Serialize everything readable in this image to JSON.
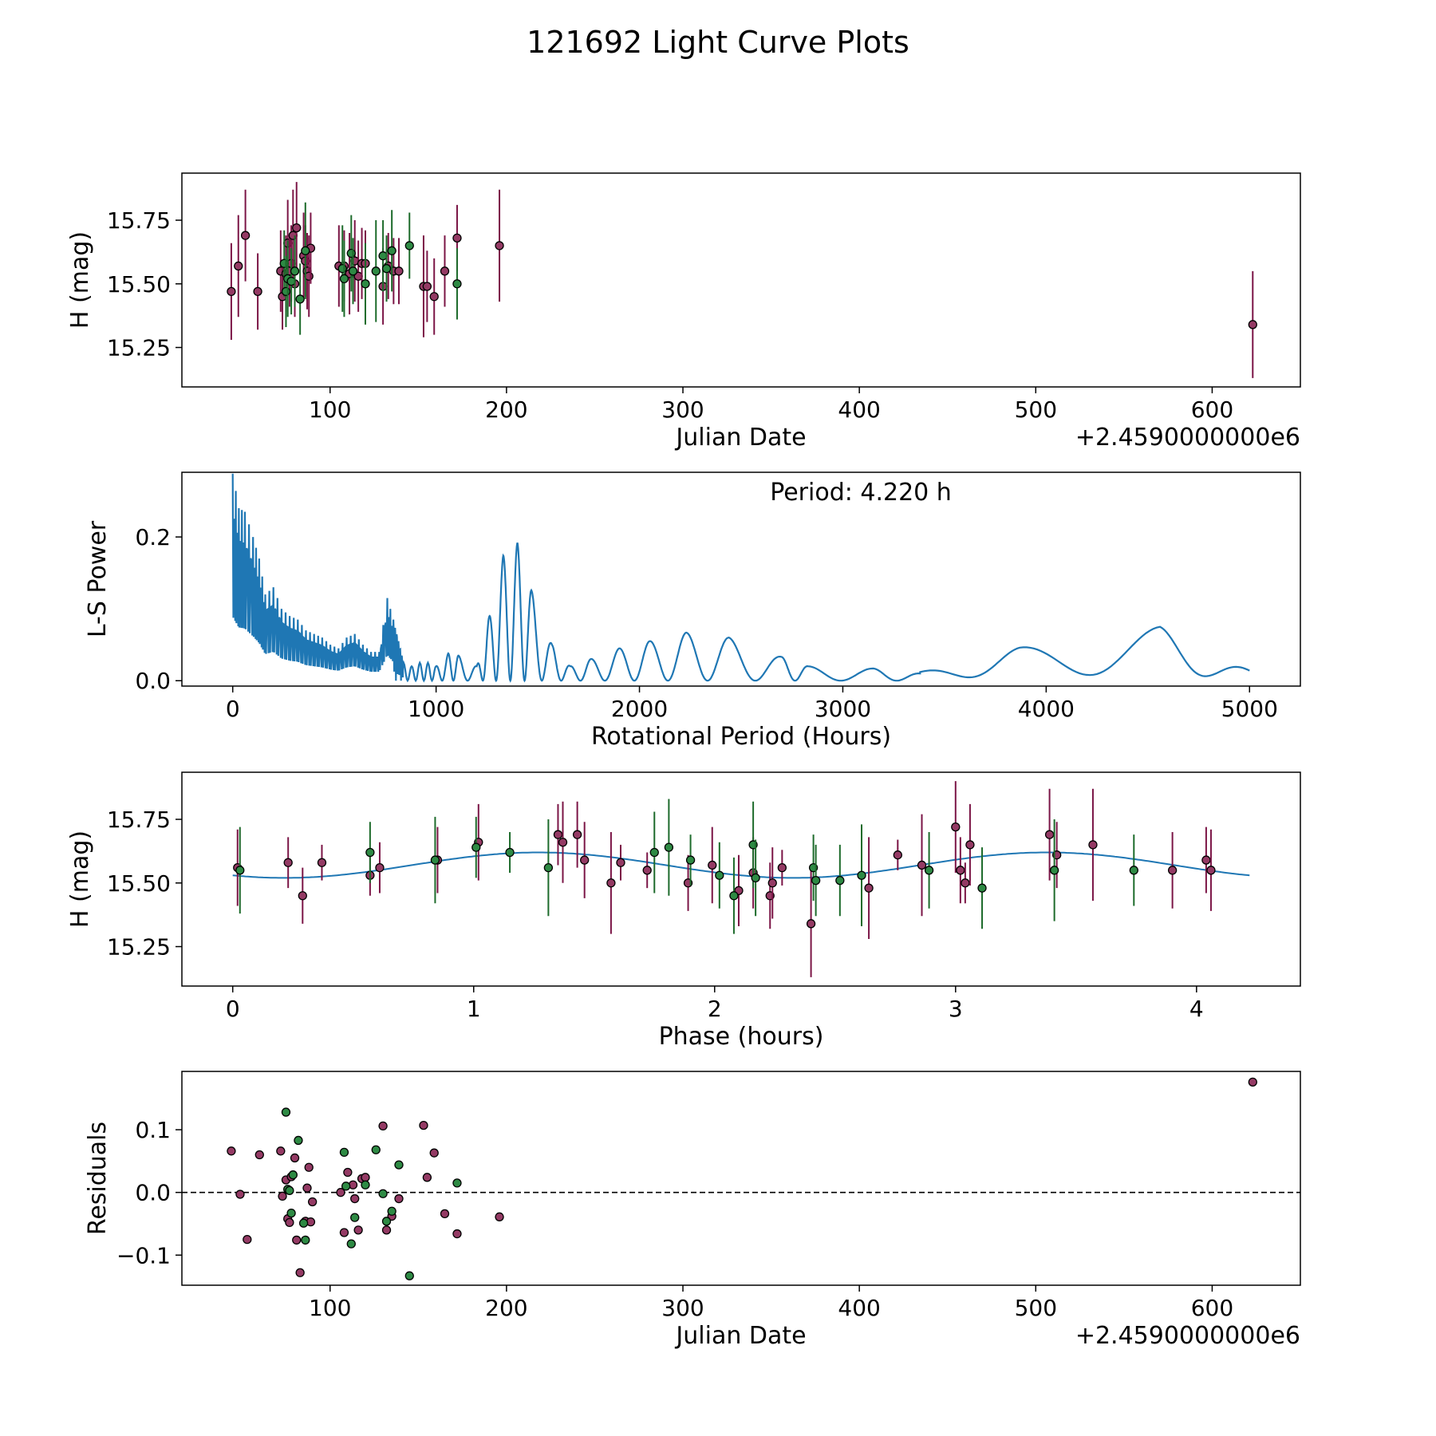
{
  "suptitle": "121692 Light Curve Plots",
  "colors": {
    "maroon": "#7b1546",
    "maroon_fill": "#943a64",
    "green": "#1d6b2b",
    "green_fill": "#2e8a44",
    "line": "#1f77b4",
    "marker_edge": "#000000",
    "frame": "#000000"
  },
  "chart_data": [
    {
      "type": "scatter",
      "name": "photometry",
      "xlabel": "Julian Date",
      "ylabel": "H (mag)",
      "offset_text": "+2.4590000000e6",
      "xlim": [
        16,
        650
      ],
      "ylim": [
        15.095,
        15.935
      ],
      "xticks": [
        100,
        200,
        300,
        400,
        500,
        600
      ],
      "yticks": [
        15.25,
        15.5,
        15.75
      ],
      "ytick_labels": [
        "15.25",
        "15.50",
        "15.75"
      ],
      "series": [
        {
          "color": "maroon",
          "points": [
            [
              44,
              15.47,
              0.19
            ],
            [
              48,
              15.57,
              0.2
            ],
            [
              52,
              15.69,
              0.18
            ],
            [
              59,
              15.47,
              0.15
            ],
            [
              72,
              15.55,
              0.16
            ],
            [
              73,
              15.45,
              0.13
            ],
            [
              75,
              15.54,
              0.15
            ],
            [
              76,
              15.66,
              0.17
            ],
            [
              77,
              15.55,
              0.14
            ],
            [
              78,
              15.58,
              0.15
            ],
            [
              79,
              15.69,
              0.18
            ],
            [
              80,
              15.5,
              0.13
            ],
            [
              81,
              15.72,
              0.18
            ],
            [
              85,
              15.61,
              0.17
            ],
            [
              86,
              15.59,
              0.14
            ],
            [
              87,
              15.55,
              0.15
            ],
            [
              88,
              15.53,
              0.16
            ],
            [
              89,
              15.64,
              0.14
            ],
            [
              105,
              15.57,
              0.16
            ],
            [
              108,
              15.57,
              0.14
            ],
            [
              111,
              15.54,
              0.16
            ],
            [
              114,
              15.59,
              0.16
            ],
            [
              116,
              15.53,
              0.14
            ],
            [
              118,
              15.58,
              0.14
            ],
            [
              120,
              15.58,
              0.13
            ],
            [
              130,
              15.49,
              0.15
            ],
            [
              133,
              15.57,
              0.13
            ],
            [
              136,
              15.55,
              0.13
            ],
            [
              139,
              15.55,
              0.13
            ],
            [
              153,
              15.49,
              0.2
            ],
            [
              155,
              15.49,
              0.14
            ],
            [
              159,
              15.45,
              0.15
            ],
            [
              165,
              15.55,
              0.14
            ],
            [
              172,
              15.68,
              0.13
            ],
            [
              196,
              15.65,
              0.22
            ],
            [
              623,
              15.34,
              0.21
            ]
          ]
        },
        {
          "color": "green",
          "points": [
            [
              74,
              15.58,
              0.13
            ],
            [
              75,
              15.47,
              0.14
            ],
            [
              76,
              15.52,
              0.15
            ],
            [
              78,
              15.51,
              0.13
            ],
            [
              80,
              15.55,
              0.14
            ],
            [
              83,
              15.44,
              0.14
            ],
            [
              86,
              15.63,
              0.19
            ],
            [
              107,
              15.56,
              0.17
            ],
            [
              108,
              15.52,
              0.15
            ],
            [
              112,
              15.62,
              0.15
            ],
            [
              113,
              15.55,
              0.13
            ],
            [
              120,
              15.5,
              0.16
            ],
            [
              126,
              15.55,
              0.2
            ],
            [
              130,
              15.61,
              0.14
            ],
            [
              132,
              15.56,
              0.13
            ],
            [
              135,
              15.63,
              0.16
            ],
            [
              145,
              15.65,
              0.13
            ],
            [
              172,
              15.5,
              0.14
            ]
          ]
        }
      ]
    },
    {
      "type": "line",
      "name": "periodogram",
      "xlabel": "Rotational Period (Hours)",
      "ylabel": "L-S Power",
      "xlim": [
        -250,
        5250
      ],
      "ylim": [
        -0.0075,
        0.29
      ],
      "xticks": [
        0,
        1000,
        2000,
        3000,
        4000,
        5000
      ],
      "yticks": [
        0.0,
        0.2
      ],
      "ytick_labels": [
        "0.0",
        "0.2"
      ],
      "annotation": "Period: 4.220 h",
      "peaks": [
        [
          0,
          0.288
        ],
        [
          30,
          0.24
        ],
        [
          60,
          0.235
        ],
        [
          100,
          0.2
        ],
        [
          130,
          0.17
        ],
        [
          160,
          0.12
        ],
        [
          200,
          0.13
        ],
        [
          240,
          0.1
        ],
        [
          280,
          0.09
        ],
        [
          320,
          0.085
        ],
        [
          360,
          0.07
        ],
        [
          400,
          0.065
        ],
        [
          440,
          0.06
        ],
        [
          480,
          0.05
        ],
        [
          520,
          0.045
        ],
        [
          560,
          0.06
        ],
        [
          600,
          0.065
        ],
        [
          640,
          0.05
        ],
        [
          680,
          0.04
        ],
        [
          720,
          0.04
        ],
        [
          760,
          0.115
        ],
        [
          790,
          0.085
        ],
        [
          840,
          0.025
        ],
        [
          880,
          0.02
        ],
        [
          920,
          0.025
        ],
        [
          960,
          0.025
        ],
        [
          1000,
          0.02
        ],
        [
          1060,
          0.038
        ],
        [
          1110,
          0.035
        ],
        [
          1200,
          0.02
        ],
        [
          1260,
          0.088
        ],
        [
          1330,
          0.174
        ],
        [
          1400,
          0.192
        ],
        [
          1470,
          0.125
        ],
        [
          1570,
          0.05
        ],
        [
          1660,
          0.02
        ],
        [
          1760,
          0.03
        ],
        [
          1900,
          0.045
        ],
        [
          2050,
          0.055
        ],
        [
          2230,
          0.067
        ],
        [
          2440,
          0.06
        ],
        [
          2700,
          0.033
        ],
        [
          2830,
          0.02
        ],
        [
          3150,
          0.017
        ],
        [
          3380,
          0.01
        ],
        [
          3870,
          0.044
        ],
        [
          4560,
          0.073
        ],
        [
          5000,
          0.012
        ]
      ]
    },
    {
      "type": "scatter",
      "name": "phase-folded",
      "xlabel": "Phase (hours)",
      "ylabel": "H (mag)",
      "xlim": [
        -0.211,
        4.431
      ],
      "ylim": [
        15.095,
        15.935
      ],
      "xticks": [
        0,
        1,
        2,
        3,
        4
      ],
      "yticks": [
        15.25,
        15.5,
        15.75
      ],
      "ytick_labels": [
        "15.25",
        "15.50",
        "15.75"
      ],
      "model": {
        "mean": 15.57,
        "amplitude": 0.05,
        "period": 2.11,
        "phase_max": 1.27,
        "x_range": [
          0,
          4.22
        ]
      },
      "series": [
        {
          "color": "maroon",
          "points": [
            [
              0.02,
              15.56,
              0.15
            ],
            [
              0.23,
              15.58,
              0.1
            ],
            [
              0.29,
              15.45,
              0.11
            ],
            [
              0.37,
              15.58,
              0.07
            ],
            [
              0.57,
              15.53,
              0.08
            ],
            [
              0.61,
              15.56,
              0.1
            ],
            [
              0.85,
              15.59,
              0.13
            ],
            [
              1.02,
              15.66,
              0.15
            ],
            [
              1.35,
              15.69,
              0.12
            ],
            [
              1.37,
              15.66,
              0.16
            ],
            [
              1.43,
              15.69,
              0.13
            ],
            [
              1.46,
              15.59,
              0.15
            ],
            [
              1.57,
              15.5,
              0.2
            ],
            [
              1.61,
              15.58,
              0.07
            ],
            [
              1.72,
              15.55,
              0.07
            ],
            [
              1.89,
              15.5,
              0.11
            ],
            [
              1.99,
              15.57,
              0.15
            ],
            [
              2.1,
              15.47,
              0.14
            ],
            [
              2.16,
              15.54,
              0.14
            ],
            [
              2.23,
              15.45,
              0.13
            ],
            [
              2.24,
              15.5,
              0.14
            ],
            [
              2.28,
              15.56,
              0.07
            ],
            [
              2.4,
              15.34,
              0.21
            ],
            [
              2.64,
              15.48,
              0.2
            ],
            [
              2.76,
              15.61,
              0.06
            ],
            [
              2.86,
              15.57,
              0.2
            ],
            [
              3.0,
              15.72,
              0.18
            ],
            [
              3.02,
              15.55,
              0.13
            ],
            [
              3.04,
              15.5,
              0.08
            ],
            [
              3.06,
              15.65,
              0.16
            ],
            [
              3.39,
              15.69,
              0.18
            ],
            [
              3.42,
              15.61,
              0.13
            ],
            [
              3.57,
              15.65,
              0.22
            ],
            [
              3.9,
              15.55,
              0.15
            ],
            [
              4.04,
              15.59,
              0.13
            ],
            [
              4.06,
              15.55,
              0.16
            ]
          ]
        },
        {
          "color": "green",
          "points": [
            [
              0.03,
              15.55,
              0.17
            ],
            [
              0.57,
              15.62,
              0.12
            ],
            [
              0.84,
              15.59,
              0.17
            ],
            [
              1.01,
              15.64,
              0.12
            ],
            [
              1.15,
              15.62,
              0.08
            ],
            [
              1.31,
              15.56,
              0.19
            ],
            [
              1.75,
              15.62,
              0.16
            ],
            [
              1.81,
              15.64,
              0.19
            ],
            [
              1.9,
              15.59,
              0.1
            ],
            [
              2.02,
              15.53,
              0.13
            ],
            [
              2.08,
              15.45,
              0.15
            ],
            [
              2.16,
              15.65,
              0.17
            ],
            [
              2.17,
              15.52,
              0.15
            ],
            [
              2.41,
              15.56,
              0.13
            ],
            [
              2.42,
              15.51,
              0.14
            ],
            [
              2.52,
              15.51,
              0.14
            ],
            [
              2.61,
              15.53,
              0.2
            ],
            [
              2.89,
              15.55,
              0.15
            ],
            [
              3.11,
              15.48,
              0.16
            ],
            [
              3.41,
              15.55,
              0.2
            ],
            [
              3.74,
              15.55,
              0.14
            ]
          ]
        }
      ]
    },
    {
      "type": "scatter",
      "name": "residuals",
      "xlabel": "Julian Date",
      "ylabel": "Residuals",
      "offset_text": "+2.4590000000e6",
      "xlim": [
        16,
        650
      ],
      "ylim": [
        -0.148,
        0.193
      ],
      "xticks": [
        100,
        200,
        300,
        400,
        500,
        600
      ],
      "yticks": [
        -0.1,
        0.0,
        0.1
      ],
      "ytick_labels": [
        "−0.1",
        "0.0",
        "0.1"
      ],
      "zero_line": 0,
      "series": [
        {
          "color": "maroon",
          "points": [
            [
              44,
              0.066
            ],
            [
              49,
              -0.003
            ],
            [
              53,
              -0.075
            ],
            [
              60,
              0.06
            ],
            [
              72,
              0.066
            ],
            [
              73,
              -0.006
            ],
            [
              75,
              0.02
            ],
            [
              76,
              -0.042
            ],
            [
              77,
              -0.048
            ],
            [
              78,
              0.025
            ],
            [
              80,
              0.055
            ],
            [
              81,
              -0.076
            ],
            [
              83,
              -0.128
            ],
            [
              86,
              -0.046
            ],
            [
              87,
              0.007
            ],
            [
              88,
              0.04
            ],
            [
              89,
              -0.047
            ],
            [
              90,
              -0.015
            ],
            [
              106,
              0.0
            ],
            [
              108,
              -0.064
            ],
            [
              110,
              0.032
            ],
            [
              113,
              0.012
            ],
            [
              114,
              -0.01
            ],
            [
              116,
              -0.06
            ],
            [
              118,
              0.022
            ],
            [
              120,
              0.024
            ],
            [
              130,
              0.106
            ],
            [
              132,
              -0.06
            ],
            [
              135,
              -0.038
            ],
            [
              139,
              -0.01
            ],
            [
              153,
              0.107
            ],
            [
              155,
              0.024
            ],
            [
              159,
              0.063
            ],
            [
              165,
              -0.034
            ],
            [
              172,
              -0.066
            ],
            [
              196,
              -0.039
            ],
            [
              623,
              0.176
            ]
          ]
        },
        {
          "color": "green",
          "points": [
            [
              75,
              0.128
            ],
            [
              76,
              0.005
            ],
            [
              77,
              0.003
            ],
            [
              78,
              -0.033
            ],
            [
              79,
              0.028
            ],
            [
              82,
              0.083
            ],
            [
              85,
              -0.049
            ],
            [
              86,
              -0.076
            ],
            [
              108,
              0.064
            ],
            [
              109,
              0.01
            ],
            [
              112,
              -0.082
            ],
            [
              114,
              -0.04
            ],
            [
              120,
              0.012
            ],
            [
              126,
              0.068
            ],
            [
              130,
              -0.002
            ],
            [
              132,
              -0.046
            ],
            [
              135,
              -0.03
            ],
            [
              139,
              0.044
            ],
            [
              145,
              -0.133
            ],
            [
              172,
              0.015
            ]
          ]
        }
      ]
    }
  ]
}
